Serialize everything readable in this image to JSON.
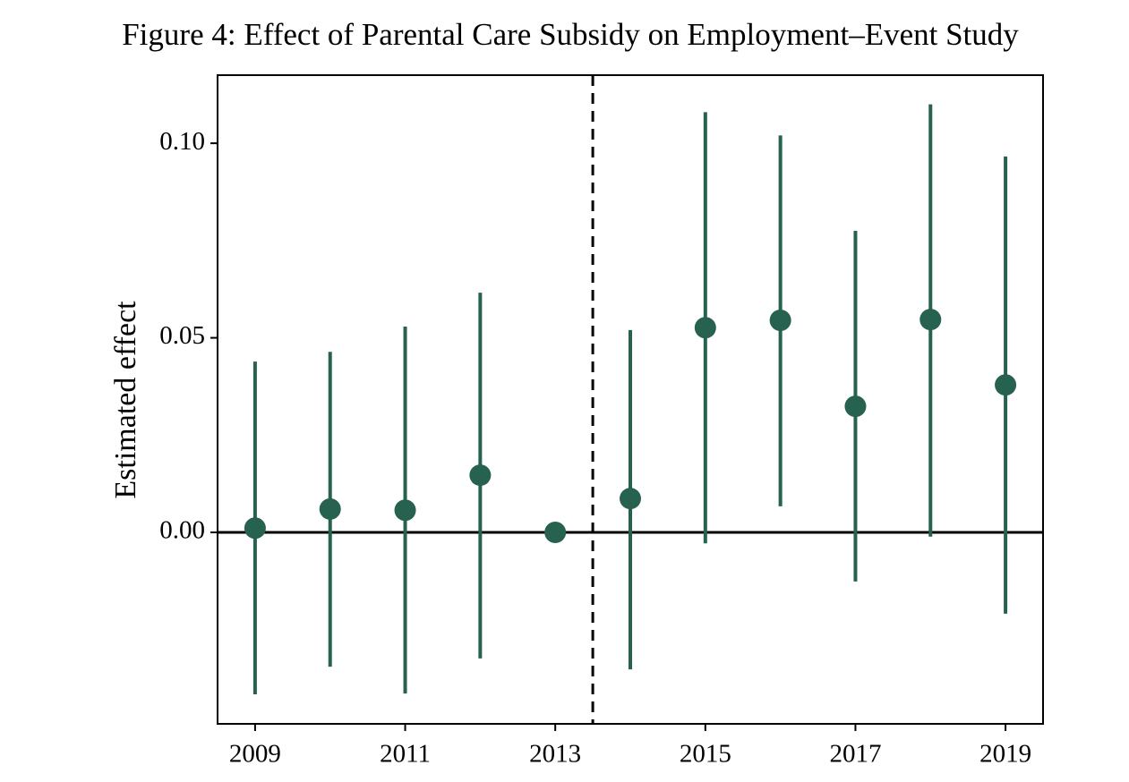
{
  "chart_data": {
    "type": "errorbar",
    "title": "Figure 4: Effect of Parental Care Subsidy on Employment–Event Study",
    "y_label": "Estimated effect",
    "x": [
      2009,
      2010,
      2011,
      2012,
      2013,
      2014,
      2015,
      2016,
      2017,
      2018,
      2019
    ],
    "series": [
      {
        "color": "#27614f",
        "values": [
          0.0011,
          0.006,
          0.0057,
          0.0147,
          0,
          0.0087,
          0.0526,
          0.0545,
          0.0324,
          0.0547,
          0.0379
        ],
        "lower": [
          -0.0416,
          -0.0345,
          -0.0414,
          -0.0324,
          null,
          -0.0352,
          -0.0028,
          0.0067,
          -0.0126,
          -0.0011,
          -0.0209
        ],
        "upper": [
          0.0439,
          0.0464,
          0.0529,
          0.0616,
          null,
          0.052,
          0.108,
          0.102,
          0.0775,
          0.11,
          0.0966
        ]
      }
    ],
    "xlim": [
      2008.5,
      2019.5
    ],
    "xticks": [
      2009,
      2011,
      2013,
      2015,
      2017,
      2019
    ],
    "ylim": [
      -0.0492,
      0.1175
    ],
    "yticks": [
      {
        "value": 0,
        "label": "0.00"
      },
      {
        "value": 0.05,
        "label": "0.05"
      },
      {
        "value": 0.1,
        "label": "0.10"
      }
    ],
    "hline": 0,
    "vline": 2013.5
  }
}
